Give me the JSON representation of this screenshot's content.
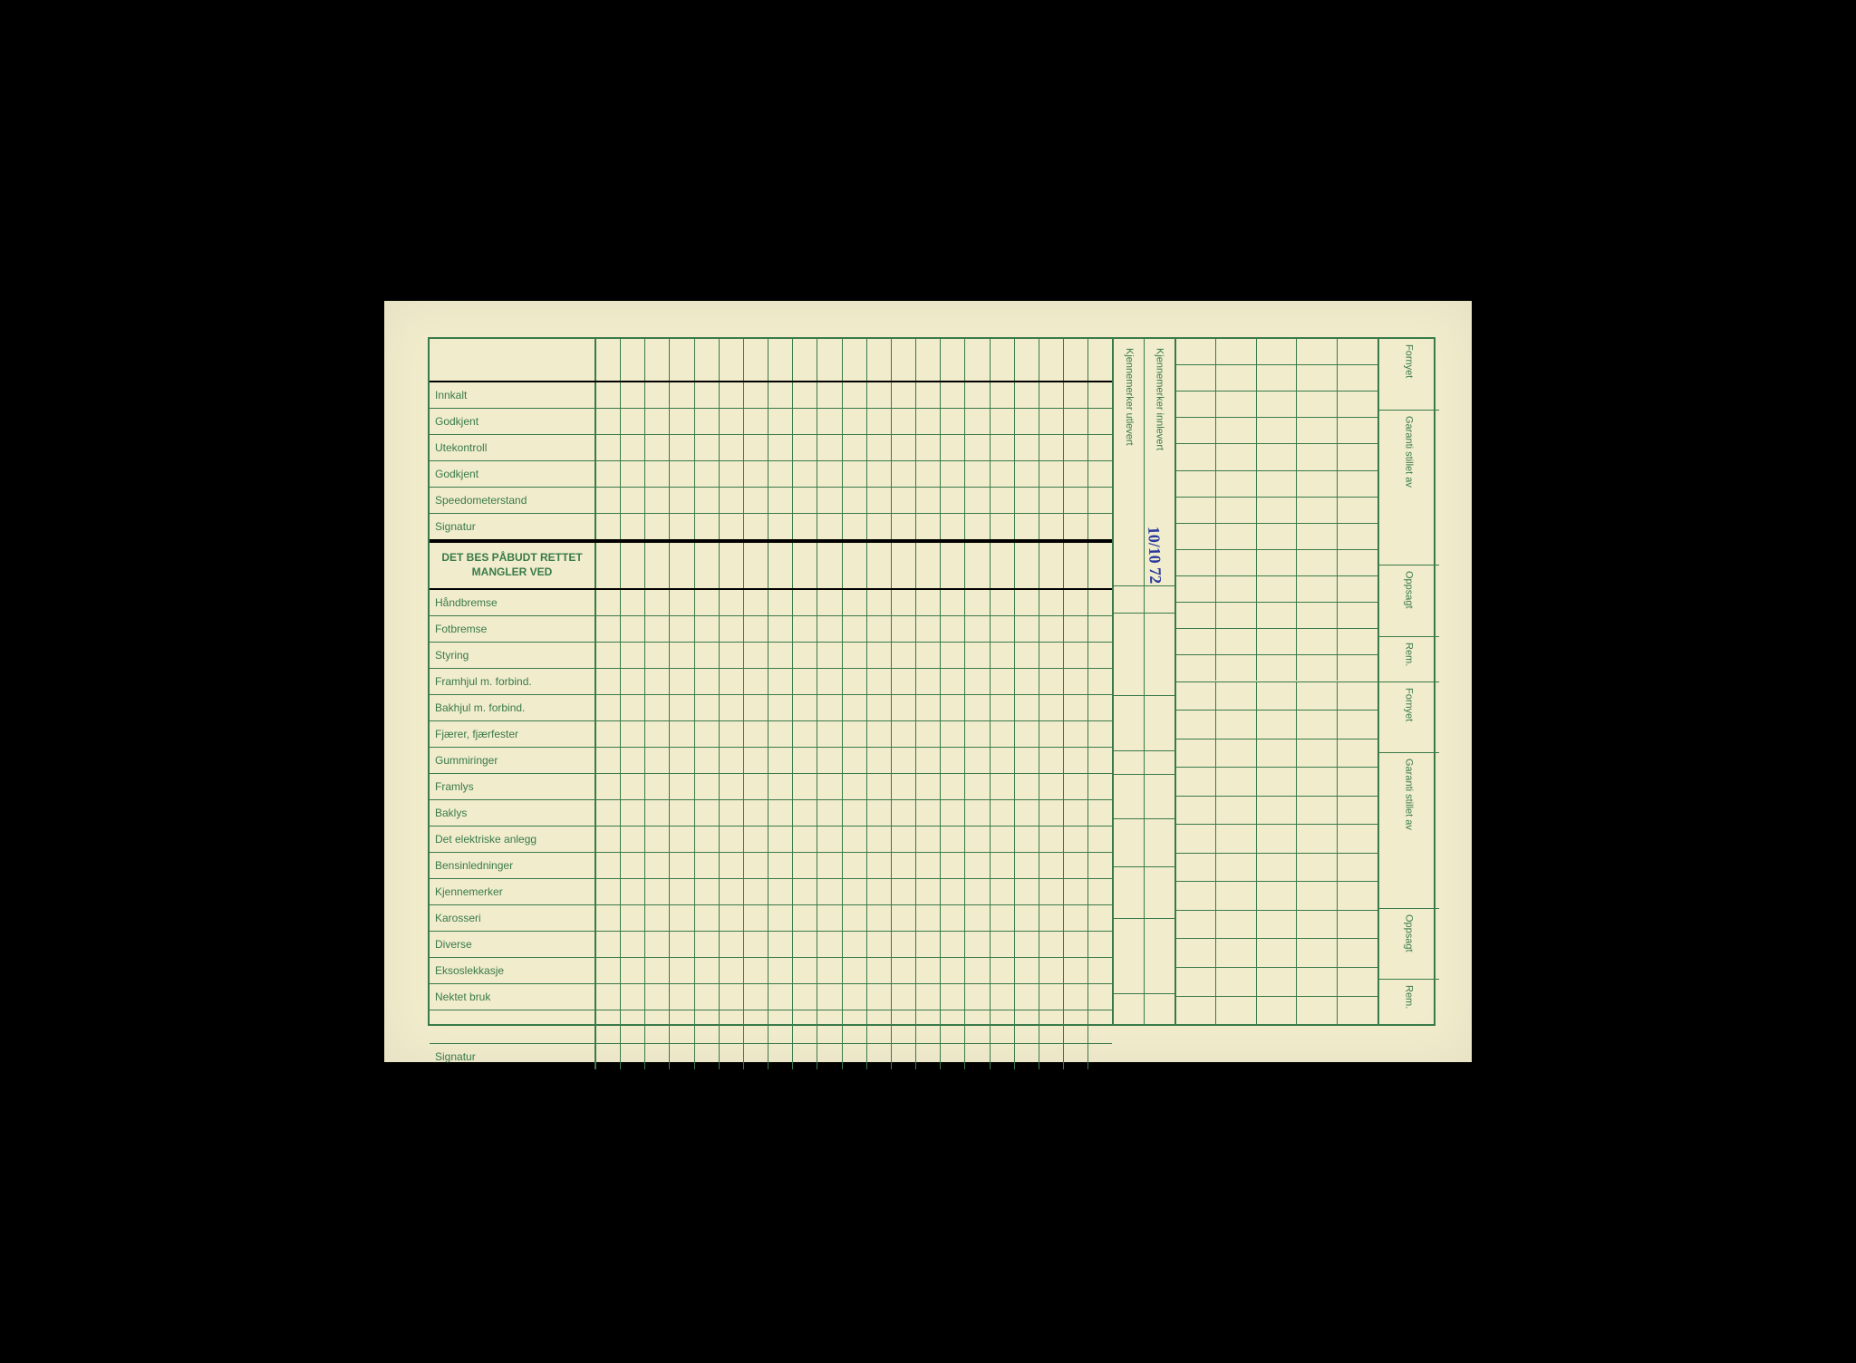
{
  "colors": {
    "line": "#3a7a4a",
    "paper": "#f0eccc",
    "ink": "#2a3a9e",
    "text": "#3a7a4a"
  },
  "layout": {
    "main_grid_columns": 21,
    "right_grid_columns": 5,
    "kj_cols": 2
  },
  "main_rows": [
    {
      "label": "",
      "type": "header"
    },
    {
      "label": "Innkalt"
    },
    {
      "label": "Godkjent"
    },
    {
      "label": "Utekontroll"
    },
    {
      "label": "Godkjent"
    },
    {
      "label": "Speedometerstand"
    },
    {
      "label": "Signatur"
    },
    {
      "label_line1": "DET BES PÅBUDT RETTET",
      "label_line2": "MANGLER VED",
      "type": "section"
    },
    {
      "label": "Håndbremse"
    },
    {
      "label": "Fotbremse"
    },
    {
      "label": "Styring"
    },
    {
      "label": "Framhjul m. forbind."
    },
    {
      "label": "Bakhjul m. forbind."
    },
    {
      "label": "Fjærer, fjærfester"
    },
    {
      "label": "Gummiringer"
    },
    {
      "label": "Framlys"
    },
    {
      "label": "Baklys"
    },
    {
      "label": "Det elektriske anlegg"
    },
    {
      "label": "Bensinledninger"
    },
    {
      "label": "Kjennemerker"
    },
    {
      "label": "Karosseri"
    },
    {
      "label": "Diverse"
    },
    {
      "label": "Eksoslekkasje"
    },
    {
      "label": "Nektet bruk"
    },
    {
      "label": "",
      "type": "gap"
    },
    {
      "label": "Signatur"
    }
  ],
  "kj_headers": [
    "Kjennemerker utlevert",
    "Kjennemerker innlevert"
  ],
  "far_right_labels_top": [
    "Fornyet",
    "Garanti stillet av",
    "Oppsagt",
    "Rem."
  ],
  "far_right_labels_bottom": [
    "Fornyet",
    "Garanti stillet av",
    "Oppsagt",
    "Rem."
  ],
  "handwriting": "10/10 72"
}
